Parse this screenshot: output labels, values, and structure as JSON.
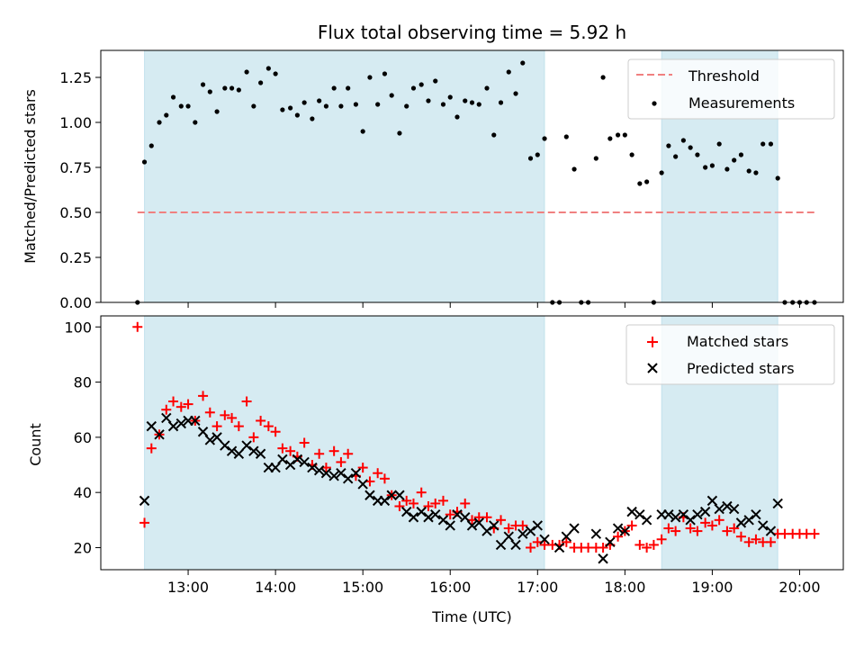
{
  "chart_data": [
    {
      "type": "scatter",
      "title": "Flux total observing time = 5.92 h",
      "xlabel": "",
      "ylabel": "Matched/Predicted stars",
      "xlim": [
        12.0,
        20.5
      ],
      "ylim": [
        0,
        1.4
      ],
      "yticks": [
        0,
        0.25,
        0.5,
        0.75,
        1.0,
        1.25
      ],
      "ytick_labels": [
        "0.00",
        "0.25",
        "0.50",
        "0.75",
        "1.00",
        "1.25"
      ],
      "grid": false,
      "legend": "top-right",
      "shaded_intervals": [
        [
          12.5,
          17.08
        ],
        [
          18.42,
          19.75
        ]
      ],
      "threshold": {
        "name": "Threshold",
        "y": 0.5,
        "x_range": [
          12.42,
          20.17
        ],
        "color": "#f08080"
      },
      "series": [
        {
          "name": "Measurements",
          "color": "#000000",
          "x": [
            12.42,
            12.5,
            12.58,
            12.67,
            12.75,
            12.83,
            12.92,
            13.0,
            13.08,
            13.17,
            13.25,
            13.33,
            13.42,
            13.5,
            13.58,
            13.67,
            13.75,
            13.83,
            13.92,
            14.0,
            14.08,
            14.17,
            14.25,
            14.33,
            14.42,
            14.5,
            14.58,
            14.67,
            14.75,
            14.83,
            14.92,
            15.0,
            15.08,
            15.17,
            15.25,
            15.33,
            15.42,
            15.5,
            15.58,
            15.67,
            15.75,
            15.83,
            15.92,
            16.0,
            16.08,
            16.17,
            16.25,
            16.33,
            16.42,
            16.5,
            16.58,
            16.67,
            16.75,
            16.83,
            16.92,
            17.0,
            17.08,
            17.17,
            17.25,
            17.33,
            17.42,
            17.5,
            17.58,
            17.67,
            17.75,
            17.83,
            17.92,
            18.0,
            18.08,
            18.17,
            18.25,
            18.33,
            18.42,
            18.5,
            18.58,
            18.67,
            18.75,
            18.83,
            18.92,
            19.0,
            19.08,
            19.17,
            19.25,
            19.33,
            19.42,
            19.5,
            19.58,
            19.67,
            19.75,
            19.83,
            19.92,
            20.0,
            20.08,
            20.17
          ],
          "y": [
            0,
            0.78,
            0.87,
            1.0,
            1.04,
            1.14,
            1.09,
            1.09,
            1.0,
            1.21,
            1.17,
            1.06,
            1.19,
            1.19,
            1.18,
            1.28,
            1.09,
            1.22,
            1.3,
            1.27,
            1.07,
            1.08,
            1.04,
            1.11,
            1.02,
            1.12,
            1.09,
            1.19,
            1.09,
            1.19,
            1.1,
            0.95,
            1.25,
            1.1,
            1.27,
            1.15,
            0.94,
            1.09,
            1.19,
            1.21,
            1.12,
            1.23,
            1.1,
            1.14,
            1.03,
            1.12,
            1.11,
            1.1,
            1.19,
            0.93,
            1.11,
            1.28,
            1.16,
            1.33,
            0.8,
            0.82,
            0.91,
            0,
            0,
            0.92,
            0.74,
            0,
            0,
            0.8,
            1.25,
            0.91,
            0.93,
            0.93,
            0.82,
            0.66,
            0.67,
            0,
            0.72,
            0.87,
            0.81,
            0.9,
            0.86,
            0.82,
            0.75,
            0.76,
            0.88,
            0.74,
            0.79,
            0.82,
            0.73,
            0.72,
            0.88,
            0.88,
            0.69,
            0,
            0,
            0,
            0,
            0
          ]
        }
      ]
    },
    {
      "type": "scatter",
      "title": "",
      "xlabel": "Time (UTC)",
      "ylabel": "Count",
      "xlim": [
        12.0,
        20.5
      ],
      "ylim": [
        12,
        104
      ],
      "xticks": [
        13,
        14,
        15,
        16,
        17,
        18,
        19,
        20
      ],
      "xtick_labels": [
        "13:00",
        "14:00",
        "15:00",
        "16:00",
        "17:00",
        "18:00",
        "19:00",
        "20:00"
      ],
      "yticks": [
        20,
        40,
        60,
        80,
        100
      ],
      "ytick_labels": [
        "20",
        "40",
        "60",
        "80",
        "100"
      ],
      "grid": false,
      "legend": "top-right",
      "shaded_intervals": [
        [
          12.5,
          17.08
        ],
        [
          18.42,
          19.75
        ]
      ],
      "series": [
        {
          "name": "Matched stars",
          "color": "#ff0000",
          "marker": "plus",
          "x": [
            12.42,
            12.5,
            12.58,
            12.67,
            12.75,
            12.83,
            12.92,
            13.0,
            13.08,
            13.17,
            13.25,
            13.33,
            13.42,
            13.5,
            13.58,
            13.67,
            13.75,
            13.83,
            13.92,
            14.0,
            14.08,
            14.17,
            14.25,
            14.33,
            14.42,
            14.5,
            14.58,
            14.67,
            14.75,
            14.83,
            14.92,
            15.0,
            15.08,
            15.17,
            15.25,
            15.33,
            15.42,
            15.5,
            15.58,
            15.67,
            15.75,
            15.83,
            15.92,
            16.0,
            16.08,
            16.17,
            16.25,
            16.33,
            16.42,
            16.5,
            16.58,
            16.67,
            16.75,
            16.83,
            16.92,
            17.0,
            17.08,
            17.17,
            17.25,
            17.33,
            17.42,
            17.5,
            17.58,
            17.67,
            17.75,
            17.83,
            17.92,
            18.0,
            18.08,
            18.17,
            18.25,
            18.33,
            18.42,
            18.5,
            18.58,
            18.67,
            18.75,
            18.83,
            18.92,
            19.0,
            19.08,
            19.17,
            19.25,
            19.33,
            19.42,
            19.5,
            19.58,
            19.67,
            19.75,
            19.83,
            19.92,
            20.0,
            20.08,
            20.17
          ],
          "y": [
            100,
            29,
            56,
            61,
            70,
            73,
            71,
            72,
            66,
            75,
            69,
            64,
            68,
            67,
            64,
            73,
            60,
            66,
            64,
            62,
            56,
            55,
            53,
            58,
            50,
            54,
            49,
            55,
            51,
            54,
            46,
            49,
            44,
            47,
            45,
            39,
            35,
            37,
            36,
            40,
            35,
            36,
            37,
            32,
            33,
            36,
            30,
            31,
            31,
            27,
            30,
            27,
            28,
            28,
            20,
            22,
            21,
            21,
            21,
            22,
            20,
            20,
            20,
            20,
            20,
            21,
            24,
            26,
            28,
            21,
            20,
            21,
            23,
            27,
            26,
            31,
            27,
            26,
            29,
            28,
            30,
            26,
            27,
            24,
            22,
            23,
            22,
            22,
            25,
            25,
            25,
            25,
            25,
            25
          ]
        },
        {
          "name": "Predicted stars",
          "color": "#000000",
          "marker": "x",
          "x": [
            12.5,
            12.58,
            12.67,
            12.75,
            12.83,
            12.92,
            13.0,
            13.08,
            13.17,
            13.25,
            13.33,
            13.42,
            13.5,
            13.58,
            13.67,
            13.75,
            13.83,
            13.92,
            14.0,
            14.08,
            14.17,
            14.25,
            14.33,
            14.42,
            14.5,
            14.58,
            14.67,
            14.75,
            14.83,
            14.92,
            15.0,
            15.08,
            15.17,
            15.25,
            15.33,
            15.42,
            15.5,
            15.58,
            15.67,
            15.75,
            15.83,
            15.92,
            16.0,
            16.08,
            16.17,
            16.25,
            16.33,
            16.42,
            16.5,
            16.58,
            16.67,
            16.75,
            16.83,
            16.92,
            17.0,
            17.08,
            17.25,
            17.33,
            17.42,
            17.67,
            17.75,
            17.83,
            17.92,
            18.0,
            18.08,
            18.17,
            18.25,
            18.42,
            18.5,
            18.58,
            18.67,
            18.75,
            18.83,
            18.92,
            19.0,
            19.08,
            19.17,
            19.25,
            19.33,
            19.42,
            19.5,
            19.58,
            19.67,
            19.75
          ],
          "y": [
            37,
            64,
            61,
            67,
            64,
            65,
            66,
            66,
            62,
            59,
            60,
            57,
            55,
            54,
            57,
            55,
            54,
            49,
            49,
            52,
            50,
            52,
            51,
            49,
            48,
            47,
            46,
            47,
            45,
            47,
            43,
            39,
            37,
            37,
            39,
            39,
            33,
            31,
            33,
            31,
            32,
            30,
            28,
            32,
            31,
            28,
            29,
            26,
            28,
            21,
            24,
            21,
            25,
            26,
            28,
            23,
            20,
            24,
            27,
            25,
            16,
            22,
            27,
            26,
            33,
            32,
            30,
            32,
            32,
            31,
            32,
            30,
            32,
            33,
            37,
            34,
            35,
            34,
            29,
            30,
            32,
            28,
            26,
            36
          ]
        }
      ]
    }
  ]
}
